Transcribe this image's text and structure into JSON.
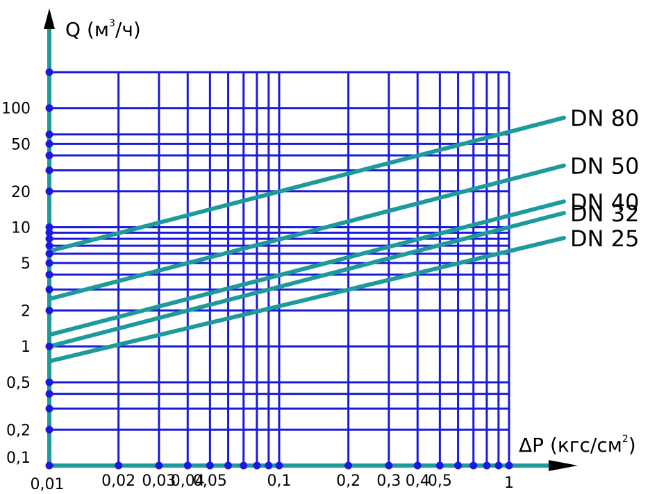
{
  "chart_data": {
    "type": "line",
    "title": "",
    "x_axis": {
      "label_main": "ΔP (кгс/см",
      "label_sup": "2",
      "label_close": ")",
      "scale": "log",
      "range": [
        0.01,
        1
      ],
      "tick_labels": [
        {
          "value": 0.01,
          "text": "0,01"
        },
        {
          "value": 0.02,
          "text": "0,02"
        },
        {
          "value": 0.03,
          "text": "0,03"
        },
        {
          "value": 0.04,
          "text": "0,04"
        },
        {
          "value": 0.05,
          "text": "0,05"
        },
        {
          "value": 0.1,
          "text": "0,1"
        },
        {
          "value": 0.2,
          "text": "0,2"
        },
        {
          "value": 0.3,
          "text": "0,3"
        },
        {
          "value": 0.4,
          "text": "0,4"
        },
        {
          "value": 0.5,
          "text": "0,5"
        },
        {
          "value": 1,
          "text": "1"
        }
      ],
      "gridlines": [
        0.02,
        0.03,
        0.04,
        0.05,
        0.06,
        0.07,
        0.08,
        0.09,
        0.1,
        0.2,
        0.3,
        0.4,
        0.5,
        0.6,
        0.7,
        0.8,
        0.9,
        1
      ]
    },
    "y_axis": {
      "label_main": "Q (м",
      "label_sup": "3",
      "label_close": "/ч)",
      "scale": "log",
      "range": [
        0.1,
        200
      ],
      "tick_labels": [
        {
          "value": 0.1,
          "text": "0,1"
        },
        {
          "value": 0.2,
          "text": "0,2"
        },
        {
          "value": 0.5,
          "text": "0,5"
        },
        {
          "value": 1,
          "text": "1"
        },
        {
          "value": 2,
          "text": "2"
        },
        {
          "value": 5,
          "text": "5"
        },
        {
          "value": 10,
          "text": "10"
        },
        {
          "value": 20,
          "text": "20"
        },
        {
          "value": 50,
          "text": "50"
        },
        {
          "value": 100,
          "text": "100"
        }
      ],
      "gridlines": [
        0.2,
        0.3,
        0.4,
        0.5,
        1,
        2,
        3,
        4,
        5,
        6,
        7,
        8,
        9,
        10,
        20,
        30,
        40,
        50,
        60,
        100,
        200
      ]
    },
    "grid": true,
    "series": [
      {
        "name": "DN 80",
        "x": [
          0.01,
          1
        ],
        "y": [
          6.3,
          63
        ]
      },
      {
        "name": "DN 50",
        "x": [
          0.01,
          1
        ],
        "y": [
          2.5,
          25
        ]
      },
      {
        "name": "DN 40",
        "x": [
          0.01,
          1
        ],
        "y": [
          1.25,
          12.5
        ]
      },
      {
        "name": "DN 32",
        "x": [
          0.01,
          1
        ],
        "y": [
          1.0,
          10
        ]
      },
      {
        "name": "DN 25",
        "x": [
          0.01,
          1
        ],
        "y": [
          0.75,
          6.3
        ]
      }
    ],
    "colors": {
      "grid": "#1a1adf",
      "series": "#1f9a9a",
      "axis_x": "#1f9a9a",
      "axis_y": "#1f9a9a",
      "dots": "#1a1adf"
    }
  }
}
